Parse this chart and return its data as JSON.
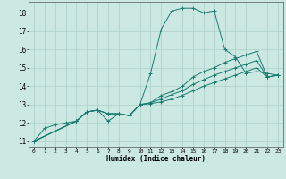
{
  "title": "",
  "xlabel": "Humidex (Indice chaleur)",
  "ylabel": "",
  "bg_color": "#cce8e3",
  "grid_color": "#aacfca",
  "line_color": "#1a7a6e",
  "xlim": [
    -0.5,
    23.5
  ],
  "ylim": [
    10.7,
    18.6
  ],
  "yticks": [
    11,
    12,
    13,
    14,
    15,
    16,
    17,
    18
  ],
  "xticks": [
    0,
    1,
    2,
    3,
    4,
    5,
    6,
    7,
    8,
    9,
    10,
    11,
    12,
    13,
    14,
    15,
    16,
    17,
    18,
    19,
    20,
    21,
    22,
    23
  ],
  "lines": [
    {
      "x": [
        0,
        1,
        2,
        3,
        4,
        5,
        6,
        7,
        8,
        9,
        10,
        11,
        12,
        13,
        14,
        15,
        16,
        17,
        18,
        19,
        20,
        21,
        22,
        23
      ],
      "y": [
        11.0,
        11.7,
        11.9,
        12.0,
        12.1,
        12.6,
        12.7,
        12.1,
        12.5,
        12.4,
        13.0,
        14.7,
        17.1,
        18.1,
        18.25,
        18.25,
        18.0,
        18.1,
        16.0,
        15.6,
        14.7,
        14.8,
        14.7,
        14.6
      ]
    },
    {
      "x": [
        0,
        4,
        5,
        6,
        7,
        8,
        9,
        10,
        11,
        12,
        13,
        14,
        15,
        16,
        17,
        18,
        19,
        20,
        21,
        22,
        23
      ],
      "y": [
        11.0,
        12.1,
        12.6,
        12.7,
        12.5,
        12.5,
        12.4,
        13.0,
        13.1,
        13.5,
        13.7,
        14.0,
        14.5,
        14.8,
        15.0,
        15.3,
        15.5,
        15.7,
        15.9,
        14.5,
        14.6
      ]
    },
    {
      "x": [
        0,
        4,
        5,
        6,
        7,
        8,
        9,
        10,
        11,
        12,
        13,
        14,
        15,
        16,
        17,
        18,
        19,
        20,
        21,
        22,
        23
      ],
      "y": [
        11.0,
        12.1,
        12.6,
        12.7,
        12.5,
        12.5,
        12.4,
        13.0,
        13.1,
        13.3,
        13.55,
        13.75,
        14.1,
        14.35,
        14.6,
        14.8,
        15.0,
        15.2,
        15.4,
        14.5,
        14.6
      ]
    },
    {
      "x": [
        0,
        4,
        5,
        6,
        7,
        8,
        9,
        10,
        11,
        12,
        13,
        14,
        15,
        16,
        17,
        18,
        19,
        20,
        21,
        22,
        23
      ],
      "y": [
        11.0,
        12.1,
        12.6,
        12.7,
        12.5,
        12.5,
        12.4,
        13.0,
        13.05,
        13.15,
        13.3,
        13.5,
        13.75,
        14.0,
        14.2,
        14.4,
        14.6,
        14.8,
        15.0,
        14.5,
        14.6
      ]
    }
  ]
}
